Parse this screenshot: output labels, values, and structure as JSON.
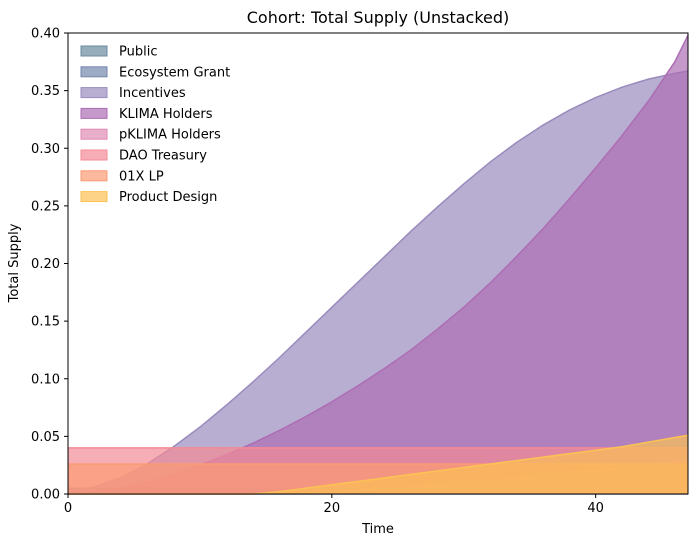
{
  "chart_data": {
    "type": "area",
    "title": "Cohort: Total Supply (Unstacked)",
    "xlabel": "Time",
    "ylabel": "Total Supply",
    "xlim": [
      0,
      47
    ],
    "ylim": [
      0,
      0.4
    ],
    "xticks": [
      0,
      20,
      40
    ],
    "yticks": [
      0.0,
      0.05,
      0.1,
      0.15,
      0.2,
      0.25,
      0.3,
      0.35,
      0.4
    ],
    "legend_position": "top-left",
    "grid": false,
    "x": [
      0,
      2,
      4,
      6,
      8,
      10,
      12,
      14,
      16,
      18,
      20,
      22,
      24,
      26,
      28,
      30,
      32,
      34,
      36,
      38,
      40,
      42,
      44,
      46,
      47
    ],
    "series": [
      {
        "name": "Public",
        "color": "#6a8ba0",
        "values": [
          0.005,
          0.005,
          0.005,
          0.005,
          0.005,
          0.005,
          0.005,
          0.005,
          0.005,
          0.005,
          0.005,
          0.005,
          0.005,
          0.005,
          0.005,
          0.005,
          0.005,
          0.005,
          0.005,
          0.005,
          0.005,
          0.005,
          0.005,
          0.005,
          0.005
        ]
      },
      {
        "name": "Ecosystem Grant",
        "color": "#7487ad",
        "values": [
          0.0,
          0.0,
          0.0,
          0.0,
          0.0,
          0.0,
          0.0,
          0.0,
          0.0,
          0.0,
          0.0,
          0.0,
          0.0,
          0.0,
          0.0,
          0.0,
          0.0,
          0.0,
          0.0,
          0.0,
          0.0,
          0.0,
          0.0,
          0.0,
          0.0
        ]
      },
      {
        "name": "Incentives",
        "color": "#9a8bbd",
        "values": [
          0.002,
          0.006,
          0.014,
          0.026,
          0.041,
          0.058,
          0.077,
          0.097,
          0.118,
          0.14,
          0.162,
          0.184,
          0.206,
          0.228,
          0.249,
          0.269,
          0.288,
          0.305,
          0.32,
          0.333,
          0.344,
          0.353,
          0.36,
          0.365,
          0.367
        ]
      },
      {
        "name": "KLIMA Holders",
        "color": "#ad6db4",
        "values": [
          0.0,
          0.002,
          0.005,
          0.01,
          0.017,
          0.025,
          0.034,
          0.044,
          0.055,
          0.067,
          0.08,
          0.094,
          0.109,
          0.125,
          0.143,
          0.162,
          0.183,
          0.206,
          0.23,
          0.256,
          0.283,
          0.311,
          0.341,
          0.375,
          0.398
        ]
      },
      {
        "name": "pKLIMA Holders",
        "color": "#e08bb2",
        "values": [
          0.0,
          0.0,
          0.0,
          0.0,
          0.0,
          0.0,
          0.0,
          0.0,
          0.001,
          0.002,
          0.003,
          0.004,
          0.006,
          0.007,
          0.009,
          0.011,
          0.013,
          0.015,
          0.017,
          0.019,
          0.021,
          0.023,
          0.025,
          0.028,
          0.03
        ]
      },
      {
        "name": "DAO Treasury",
        "color": "#f48a96",
        "values": [
          0.04,
          0.04,
          0.04,
          0.04,
          0.04,
          0.04,
          0.04,
          0.04,
          0.04,
          0.04,
          0.04,
          0.04,
          0.04,
          0.04,
          0.04,
          0.04,
          0.04,
          0.04,
          0.04,
          0.04,
          0.04,
          0.04,
          0.04,
          0.04,
          0.04
        ]
      },
      {
        "name": "01X  LP",
        "color": "#fb9b73",
        "values": [
          0.026,
          0.026,
          0.026,
          0.026,
          0.026,
          0.026,
          0.026,
          0.026,
          0.026,
          0.026,
          0.026,
          0.026,
          0.026,
          0.026,
          0.026,
          0.026,
          0.026,
          0.026,
          0.026,
          0.026,
          0.026,
          0.026,
          0.026,
          0.026,
          0.026
        ]
      },
      {
        "name": "Product Design",
        "color": "#fcc254",
        "values": [
          0.0,
          0.0,
          0.0,
          0.0,
          0.0,
          0.0,
          0.0,
          0.0,
          0.002,
          0.005,
          0.008,
          0.011,
          0.014,
          0.017,
          0.02,
          0.023,
          0.026,
          0.029,
          0.032,
          0.035,
          0.038,
          0.041,
          0.045,
          0.049,
          0.051
        ]
      }
    ]
  }
}
